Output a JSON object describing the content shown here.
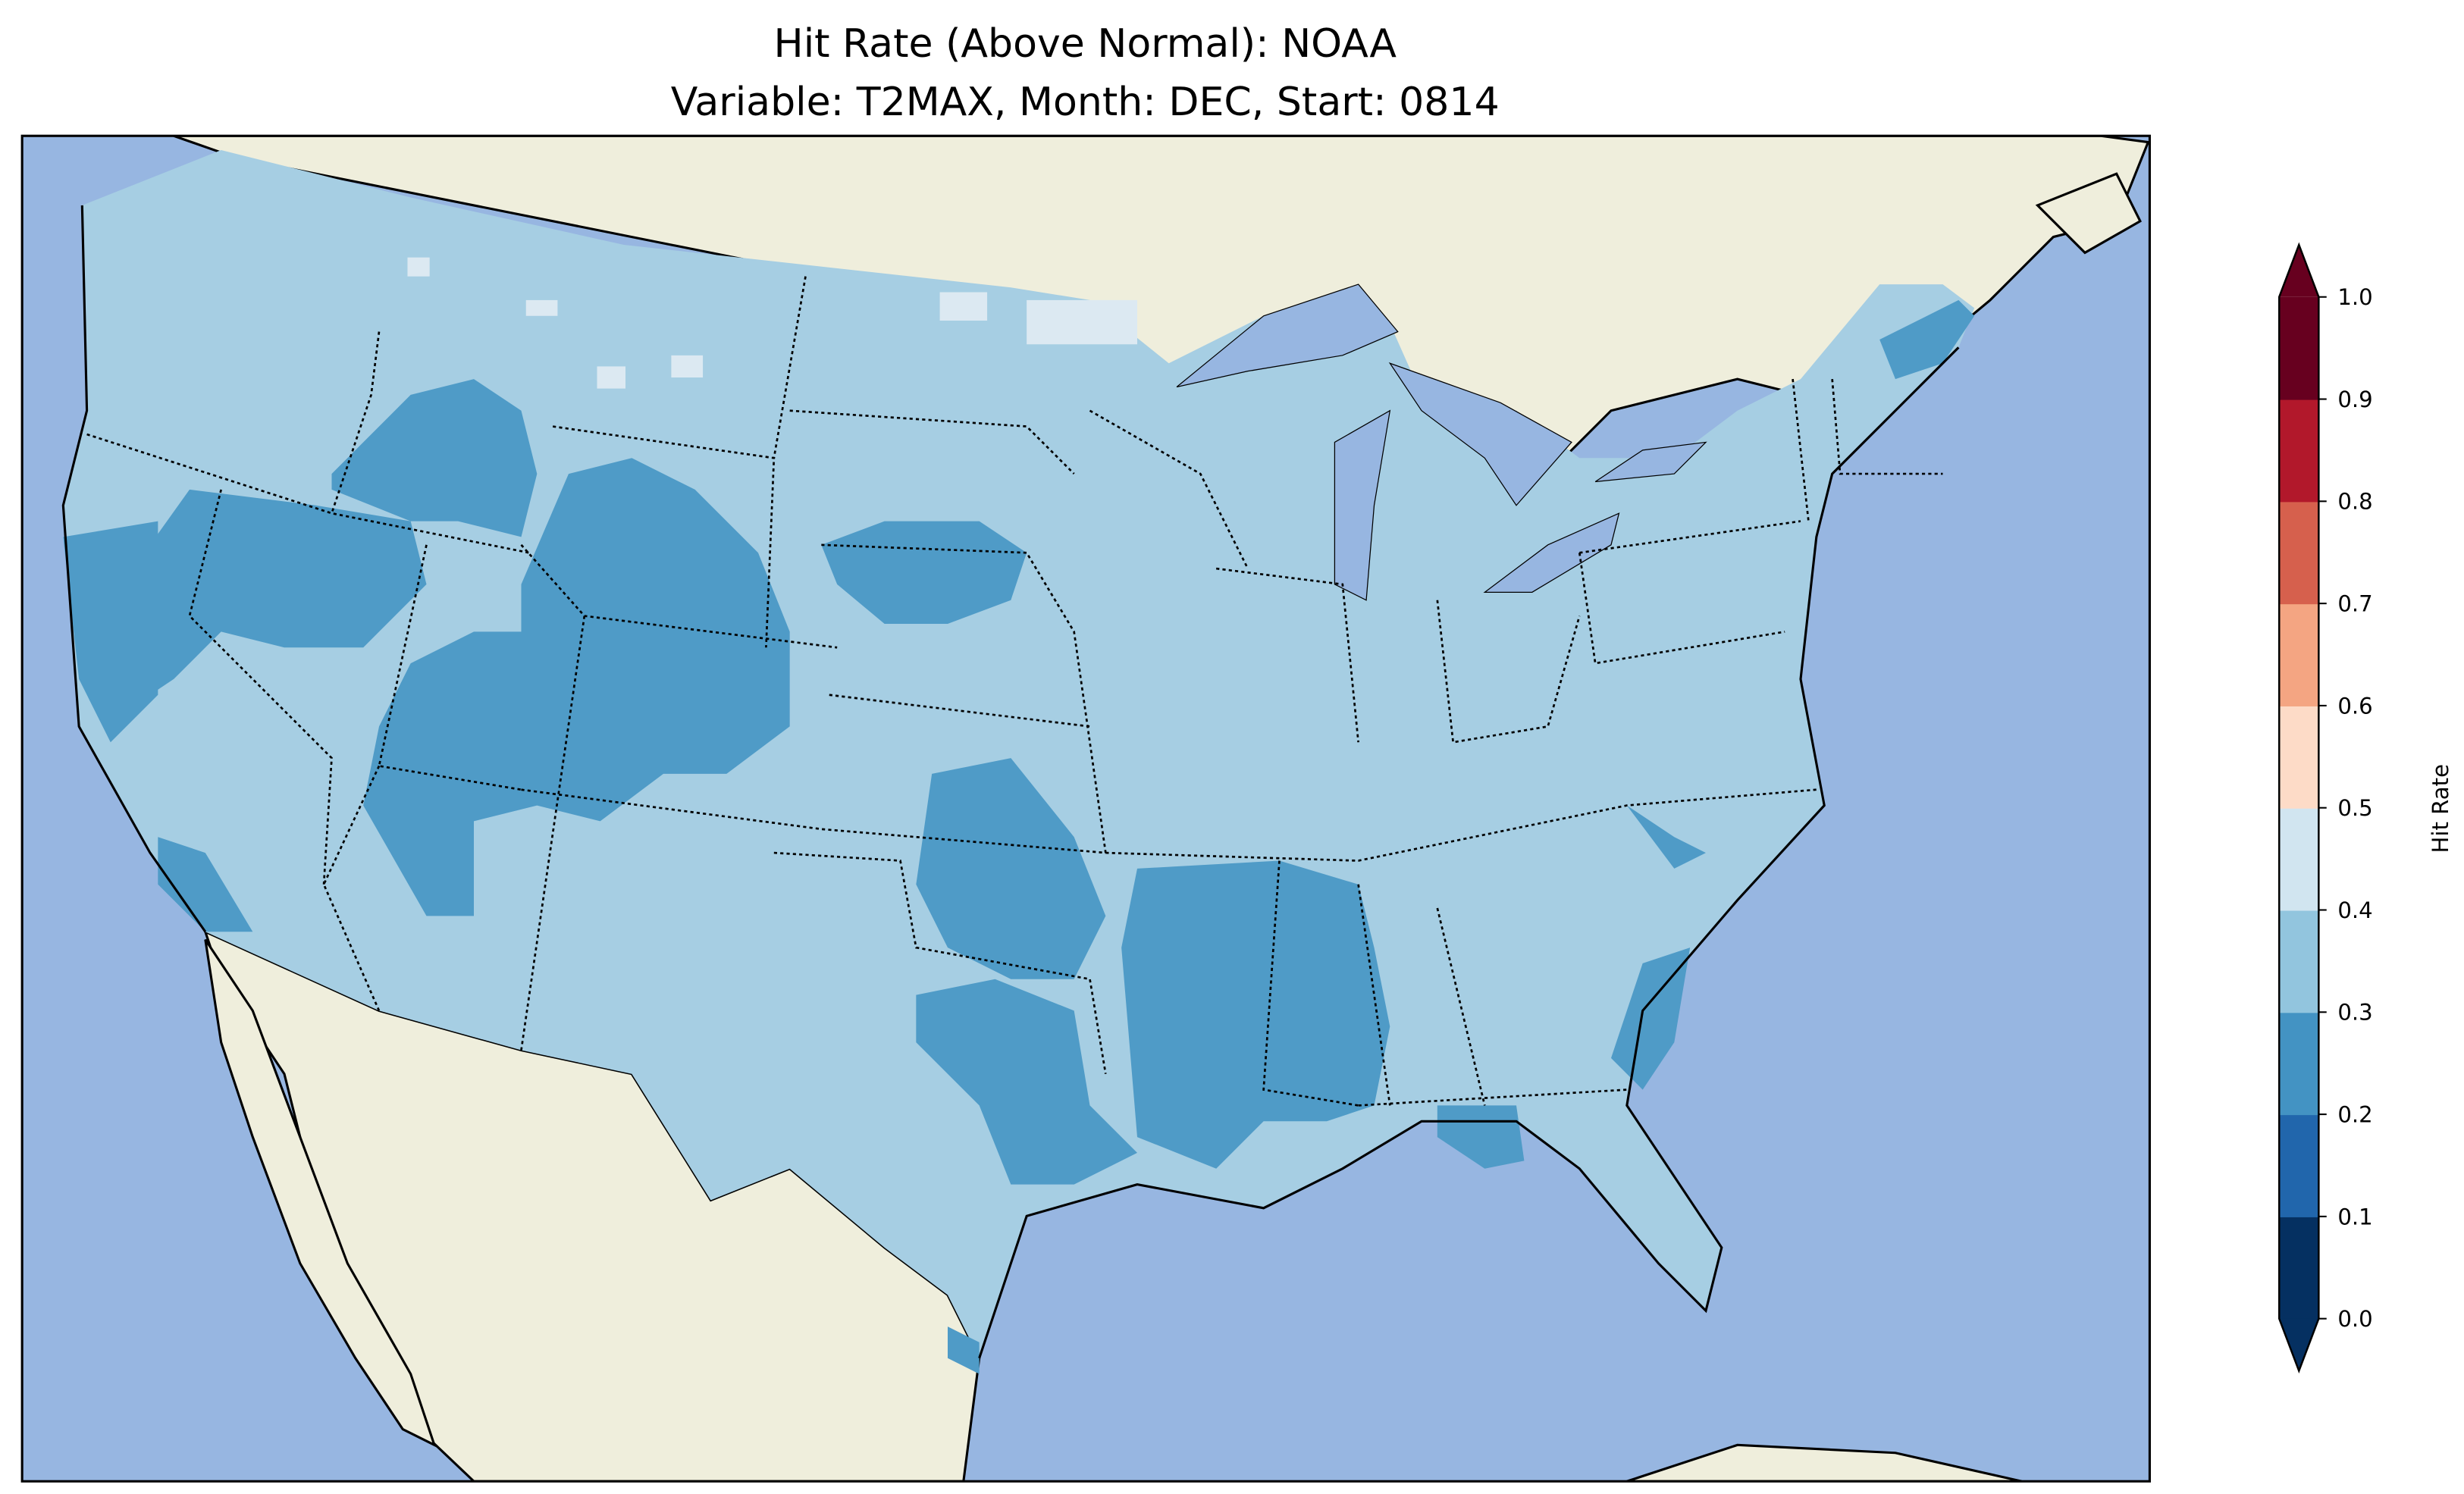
{
  "title": {
    "line1": "Hit Rate (Above Normal): NOAA",
    "line2": "Variable: T2MAX, Month: DEC, Start: 0814"
  },
  "colorbar": {
    "label": "Hit Rate",
    "ticks": [
      "0.0",
      "0.1",
      "0.2",
      "0.3",
      "0.4",
      "0.5",
      "0.6",
      "0.7",
      "0.8",
      "0.9",
      "1.0"
    ],
    "colors": [
      "#053061",
      "#2166ac",
      "#4393c3",
      "#92c5de",
      "#d1e5f0",
      "#fddbc7",
      "#f4a582",
      "#d6604d",
      "#b2182b",
      "#67001f"
    ],
    "extend": "both"
  },
  "chart_data": {
    "type": "heatmap",
    "title": "Hit Rate (Above Normal): NOAA\nVariable: T2MAX, Month: DEC, Start: 0814",
    "colorbar_label": "Hit Rate",
    "levels": [
      0.0,
      0.1,
      0.2,
      0.3,
      0.4,
      0.5,
      0.6,
      0.7,
      0.8,
      0.9,
      1.0
    ],
    "vmin": 0.0,
    "vmax": 1.0,
    "region": "CONUS",
    "dominant_value_range": [
      0.3,
      0.4
    ],
    "regions": [
      {
        "name": "Most of CONUS",
        "range": [
          0.3,
          0.4
        ]
      },
      {
        "name": "Great Basin / Idaho / Wyoming / Colorado / Utah",
        "range": [
          0.2,
          0.3
        ]
      },
      {
        "name": "Central California coast",
        "range": [
          0.2,
          0.3
        ]
      },
      {
        "name": "Arizona / New Mexico north",
        "range": [
          0.2,
          0.3
        ]
      },
      {
        "name": "South Dakota / Nebraska",
        "range": [
          0.2,
          0.3
        ]
      },
      {
        "name": "Oklahoma / Texas north-central",
        "range": [
          0.2,
          0.3
        ]
      },
      {
        "name": "Arkansas / Louisiana / Mississippi",
        "range": [
          0.2,
          0.3
        ]
      },
      {
        "name": "Coastal Maine",
        "range": [
          0.2,
          0.3
        ]
      },
      {
        "name": "Georgia / South Carolina coast",
        "range": [
          0.2,
          0.3
        ]
      },
      {
        "name": "Florida panhandle",
        "range": [
          0.2,
          0.3
        ]
      },
      {
        "name": "Northern Montana / Minnesota spots",
        "range": [
          0.4,
          0.5
        ]
      }
    ]
  }
}
